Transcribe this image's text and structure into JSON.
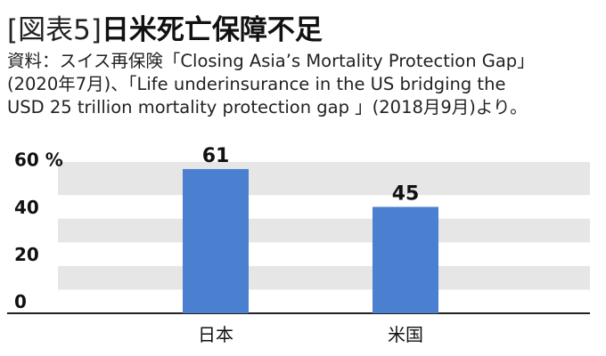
{
  "figure": {
    "title_prefix": "[図表5]",
    "title_main": "日米死亡保障不足",
    "source_lines": [
      "資料：スイス再保険「Closing Asia’s Mortality Protection Gap」",
      "(2020年7月)、「Life underinsurance in the US  bridging the",
      "USD 25 trillion mortality protection gap 」(2018月9月)より。"
    ]
  },
  "chart_data": {
    "type": "bar",
    "title": "日米死亡保障不足",
    "categories": [
      "日本",
      "米国"
    ],
    "values": [
      61,
      45
    ],
    "data_labels": [
      "61",
      "45"
    ],
    "yticks": [
      0,
      20,
      40,
      60
    ],
    "ytick_labels": [
      "0",
      "20",
      "40",
      "60 %"
    ],
    "ylim": [
      0,
      64
    ],
    "xlabel": "",
    "ylabel": "",
    "unit": "%",
    "grid": "alternating-bands",
    "legend": "none",
    "colors": {
      "bar": "#4b7fd0",
      "band": "#e6e6e6",
      "axis": "#222222"
    }
  }
}
